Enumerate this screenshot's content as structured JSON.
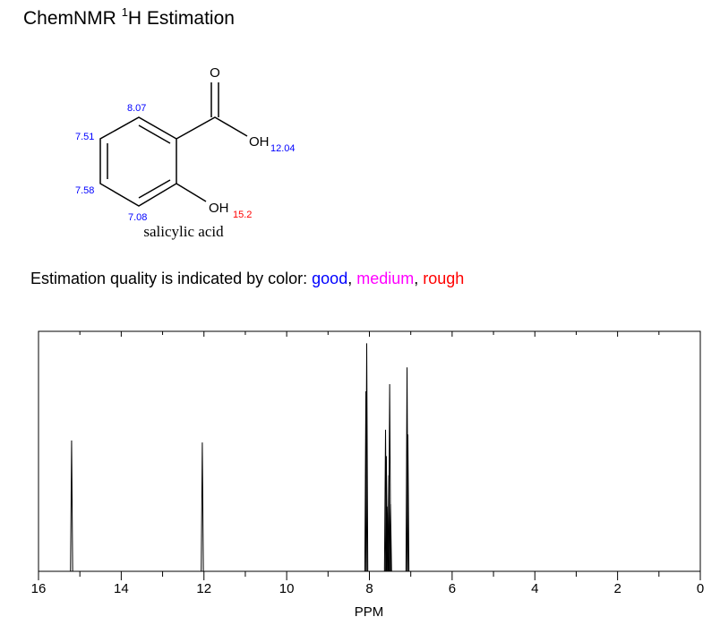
{
  "header": {
    "title_prefix": "ChemNMR ",
    "title_sup": "1",
    "title_suffix": "H Estimation"
  },
  "molecule": {
    "name": "salicylic acid",
    "atoms": [
      "O",
      "OH",
      "OH"
    ],
    "shifts": [
      "8.07",
      "7.51",
      "7.58",
      "7.08",
      "12.04",
      "15.2"
    ]
  },
  "quality": {
    "intro": "Estimation quality is indicated by color: ",
    "good": "good",
    "sep1": ", ",
    "medium": "medium",
    "sep2": ", ",
    "rough": "rough"
  },
  "chart_data": {
    "type": "spectrum",
    "xlabel": "PPM",
    "color": "#000000",
    "x": [
      15.2,
      12.04,
      8.085,
      8.065,
      7.61,
      7.59,
      7.57,
      7.53,
      7.51,
      7.49,
      7.09,
      7.07
    ],
    "values": [
      54.5,
      53.7,
      75,
      95,
      59,
      48,
      27,
      40,
      78,
      28,
      85,
      57
    ],
    "xlim": [
      16,
      0
    ],
    "ylim": [
      0,
      100
    ],
    "xticks": [
      16,
      14,
      12,
      10,
      8,
      6,
      4,
      2,
      0
    ],
    "xminorticks": [
      15,
      13,
      11,
      9,
      7,
      5,
      3,
      1
    ]
  }
}
